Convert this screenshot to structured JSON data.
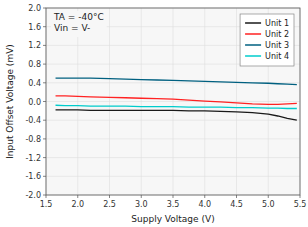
{
  "chart_data": {
    "type": "line",
    "xlabel": "Supply Voltage (V)",
    "ylabel": "Input Offset Voltage (mV)",
    "annotations": [
      "TA = -40°C",
      "Vin = V-"
    ],
    "x": [
      1.65,
      1.8,
      2.0,
      2.2,
      2.5,
      2.75,
      3.0,
      3.25,
      3.5,
      3.75,
      4.0,
      4.25,
      4.5,
      4.75,
      5.0,
      5.15,
      5.3,
      5.45
    ],
    "series": [
      {
        "name": "Unit 1",
        "color": "#1a1a1a",
        "values": [
          -0.18,
          -0.18,
          -0.18,
          -0.19,
          -0.19,
          -0.19,
          -0.19,
          -0.19,
          -0.19,
          -0.2,
          -0.2,
          -0.21,
          -0.22,
          -0.24,
          -0.27,
          -0.31,
          -0.36,
          -0.4
        ]
      },
      {
        "name": "Unit 2",
        "color": "#ff2222",
        "values": [
          0.12,
          0.12,
          0.11,
          0.1,
          0.09,
          0.08,
          0.07,
          0.06,
          0.05,
          0.03,
          0.01,
          -0.01,
          -0.03,
          -0.05,
          -0.06,
          -0.06,
          -0.05,
          -0.04
        ]
      },
      {
        "name": "Unit 3",
        "color": "#006080",
        "values": [
          0.5,
          0.5,
          0.5,
          0.5,
          0.49,
          0.48,
          0.47,
          0.46,
          0.45,
          0.44,
          0.43,
          0.42,
          0.41,
          0.4,
          0.39,
          0.38,
          0.37,
          0.36
        ]
      },
      {
        "name": "Unit 4",
        "color": "#00cccc",
        "values": [
          -0.08,
          -0.09,
          -0.09,
          -0.1,
          -0.1,
          -0.1,
          -0.11,
          -0.11,
          -0.11,
          -0.12,
          -0.12,
          -0.12,
          -0.13,
          -0.13,
          -0.14,
          -0.14,
          -0.15,
          -0.15
        ]
      }
    ],
    "xlim": [
      1.5,
      5.5
    ],
    "ylim": [
      -2,
      2
    ],
    "xticks": [
      1.5,
      {
        "value": 2.0,
        "label": "2.0"
      },
      2.5,
      {
        "value": 3.0,
        "label": "3.0"
      },
      3.5,
      {
        "value": 4.0,
        "label": "4.0"
      },
      4.5,
      {
        "value": 5.0,
        "label": "5.0"
      },
      5.5
    ],
    "yticks": [
      {
        "value": -2.0,
        "label": "-2.0"
      },
      -1.6,
      -1.2,
      -0.8,
      -0.4,
      {
        "value": 0.0,
        "label": "0.0"
      },
      0.4,
      0.8,
      1.2,
      1.6,
      {
        "value": 2.0,
        "label": "2.0"
      }
    ],
    "grid": true,
    "legend": "upper right"
  }
}
